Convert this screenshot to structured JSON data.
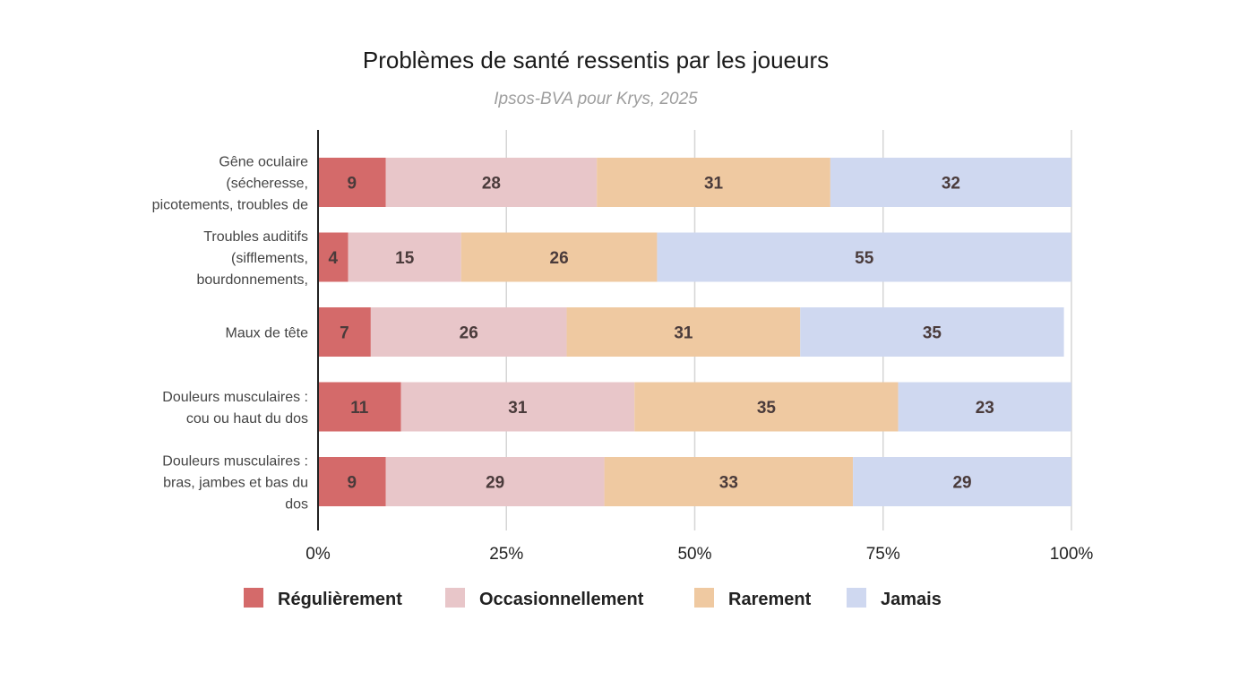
{
  "chart_data": {
    "type": "bar",
    "orientation": "horizontal",
    "stacked": true,
    "title": "Problèmes de santé ressentis par les joueurs",
    "subtitle": "Ipsos-BVA pour Krys, 2025",
    "categories": [
      [
        "Gêne oculaire",
        "(sécheresse,",
        "picotements, troubles de"
      ],
      [
        "Troubles auditifs",
        "(sifflements,",
        "bourdonnements,"
      ],
      [
        "Maux de tête"
      ],
      [
        "Douleurs musculaires :",
        "cou ou haut du dos"
      ],
      [
        "Douleurs musculaires :",
        "bras, jambes et bas du",
        "dos"
      ]
    ],
    "series": [
      {
        "name": "Régulièrement",
        "color": "#d46a6a",
        "values": [
          9,
          4,
          7,
          11,
          9
        ]
      },
      {
        "name": "Occasionnellement",
        "color": "#e8c6c9",
        "values": [
          28,
          15,
          26,
          31,
          29
        ]
      },
      {
        "name": "Rarement",
        "color": "#efc9a1",
        "values": [
          31,
          26,
          31,
          35,
          33
        ]
      },
      {
        "name": "Jamais",
        "color": "#cfd8f0",
        "values": [
          32,
          55,
          35,
          23,
          29
        ]
      }
    ],
    "xlim": [
      0,
      100
    ],
    "xticks": [
      "0%",
      "25%",
      "50%",
      "75%",
      "100%"
    ],
    "xtick_values": [
      0,
      25,
      50,
      75,
      100
    ],
    "grid": true,
    "legend_position": "bottom",
    "xlabel": "",
    "ylabel": ""
  }
}
